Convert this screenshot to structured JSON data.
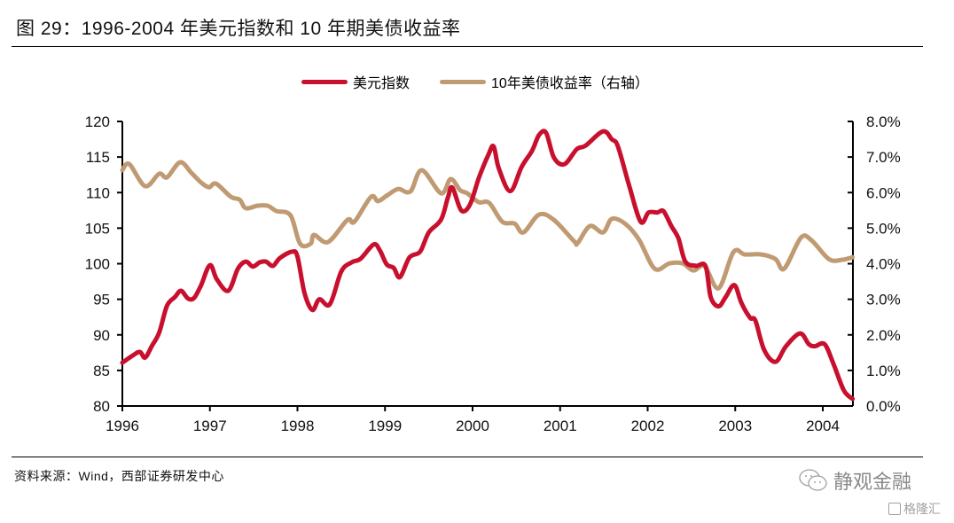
{
  "header": {
    "title": "图 29：1996-2004 年美元指数和 10 年期美债收益率"
  },
  "footer": {
    "source": "资料来源：Wind，西部证券研发中心",
    "watermark": "静观金融",
    "watermark2": "格隆汇"
  },
  "chart_data": {
    "type": "line",
    "title": "1996-2004 年美元指数和 10 年期美债收益率",
    "xlabel": "",
    "ylabel": "",
    "y2label": "",
    "x_ticks": [
      "1996",
      "1997",
      "1998",
      "1999",
      "2000",
      "2001",
      "2002",
      "2003",
      "2004"
    ],
    "x_range": [
      1996,
      2004.34
    ],
    "ylim": [
      80,
      120
    ],
    "y_ticks": [
      "80",
      "85",
      "90",
      "95",
      "100",
      "105",
      "110",
      "115",
      "120"
    ],
    "y2lim": [
      0,
      8
    ],
    "y2_ticks": [
      "0.0%",
      "1.0%",
      "2.0%",
      "3.0%",
      "4.0%",
      "5.0%",
      "6.0%",
      "7.0%",
      "8.0%"
    ],
    "grid": false,
    "legend_position": "top-center",
    "series": [
      {
        "name": "美元指数",
        "axis": "left",
        "color": "#c8102e",
        "points": [
          [
            1996.0,
            86.1
          ],
          [
            1996.12,
            87.1
          ],
          [
            1996.2,
            87.6
          ],
          [
            1996.26,
            86.8
          ],
          [
            1996.34,
            88.5
          ],
          [
            1996.42,
            90.3
          ],
          [
            1996.51,
            94.1
          ],
          [
            1996.6,
            95.3
          ],
          [
            1996.67,
            96.2
          ],
          [
            1996.75,
            95.1
          ],
          [
            1996.82,
            95.2
          ],
          [
            1996.9,
            97.0
          ],
          [
            1997.0,
            99.8
          ],
          [
            1997.08,
            97.8
          ],
          [
            1997.21,
            96.2
          ],
          [
            1997.32,
            99.3
          ],
          [
            1997.41,
            100.3
          ],
          [
            1997.49,
            99.6
          ],
          [
            1997.57,
            100.2
          ],
          [
            1997.64,
            100.3
          ],
          [
            1997.72,
            99.7
          ],
          [
            1997.8,
            100.8
          ],
          [
            1997.94,
            101.7
          ],
          [
            1998.0,
            101.0
          ],
          [
            1998.08,
            95.9
          ],
          [
            1998.17,
            93.5
          ],
          [
            1998.25,
            95.0
          ],
          [
            1998.37,
            94.3
          ],
          [
            1998.5,
            98.9
          ],
          [
            1998.62,
            100.2
          ],
          [
            1998.72,
            100.7
          ],
          [
            1998.87,
            102.7
          ],
          [
            1998.94,
            101.9
          ],
          [
            1999.02,
            99.9
          ],
          [
            1999.1,
            99.4
          ],
          [
            1999.17,
            98.1
          ],
          [
            1999.28,
            100.9
          ],
          [
            1999.4,
            101.7
          ],
          [
            1999.5,
            104.4
          ],
          [
            1999.64,
            106.2
          ],
          [
            1999.72,
            109.4
          ],
          [
            1999.77,
            110.7
          ],
          [
            1999.87,
            107.5
          ],
          [
            1999.97,
            108.3
          ],
          [
            2000.07,
            112.0
          ],
          [
            2000.18,
            115.3
          ],
          [
            2000.24,
            116.5
          ],
          [
            2000.3,
            113.4
          ],
          [
            2000.43,
            110.2
          ],
          [
            2000.56,
            113.6
          ],
          [
            2000.68,
            115.9
          ],
          [
            2000.76,
            118.1
          ],
          [
            2000.84,
            118.4
          ],
          [
            2000.93,
            114.9
          ],
          [
            2001.05,
            114.0
          ],
          [
            2001.19,
            116.1
          ],
          [
            2001.29,
            116.6
          ],
          [
            2001.49,
            118.6
          ],
          [
            2001.59,
            117.5
          ],
          [
            2001.66,
            116.5
          ],
          [
            2001.79,
            110.9
          ],
          [
            2001.92,
            105.9
          ],
          [
            2002.01,
            107.2
          ],
          [
            2002.11,
            107.2
          ],
          [
            2002.18,
            107.4
          ],
          [
            2002.27,
            105.3
          ],
          [
            2002.35,
            103.6
          ],
          [
            2002.43,
            100.3
          ],
          [
            2002.55,
            99.7
          ],
          [
            2002.66,
            99.7
          ],
          [
            2002.72,
            95.3
          ],
          [
            2002.81,
            94.0
          ],
          [
            2002.89,
            95.3
          ],
          [
            2002.99,
            97.0
          ],
          [
            2003.07,
            94.5
          ],
          [
            2003.17,
            92.4
          ],
          [
            2003.23,
            92.0
          ],
          [
            2003.33,
            87.9
          ],
          [
            2003.46,
            86.2
          ],
          [
            2003.58,
            88.4
          ],
          [
            2003.74,
            90.2
          ],
          [
            2003.84,
            88.7
          ],
          [
            2003.91,
            88.4
          ],
          [
            2004.02,
            88.7
          ],
          [
            2004.12,
            86.0
          ],
          [
            2004.24,
            82.2
          ],
          [
            2004.34,
            81.0
          ]
        ]
      },
      {
        "name": "10年美债收益率（右轴）",
        "axis": "right",
        "color": "#c09a72",
        "points": [
          [
            1996.0,
            6.63
          ],
          [
            1996.08,
            6.8
          ],
          [
            1996.26,
            6.18
          ],
          [
            1996.42,
            6.53
          ],
          [
            1996.51,
            6.43
          ],
          [
            1996.66,
            6.85
          ],
          [
            1996.79,
            6.55
          ],
          [
            1996.9,
            6.28
          ],
          [
            1996.99,
            6.15
          ],
          [
            1997.07,
            6.25
          ],
          [
            1997.24,
            5.88
          ],
          [
            1997.34,
            5.8
          ],
          [
            1997.41,
            5.56
          ],
          [
            1997.54,
            5.63
          ],
          [
            1997.66,
            5.63
          ],
          [
            1997.76,
            5.48
          ],
          [
            1997.92,
            5.36
          ],
          [
            1998.03,
            4.56
          ],
          [
            1998.15,
            4.56
          ],
          [
            1998.19,
            4.81
          ],
          [
            1998.35,
            4.61
          ],
          [
            1998.57,
            5.23
          ],
          [
            1998.65,
            5.18
          ],
          [
            1998.84,
            5.88
          ],
          [
            1998.92,
            5.76
          ],
          [
            1999.03,
            5.93
          ],
          [
            1999.15,
            6.1
          ],
          [
            1999.29,
            6.03
          ],
          [
            1999.42,
            6.63
          ],
          [
            1999.64,
            5.98
          ],
          [
            1999.75,
            6.38
          ],
          [
            1999.86,
            6.06
          ],
          [
            1999.94,
            5.98
          ],
          [
            2000.07,
            5.73
          ],
          [
            2000.19,
            5.71
          ],
          [
            2000.34,
            5.18
          ],
          [
            2000.48,
            5.13
          ],
          [
            2000.58,
            4.88
          ],
          [
            2000.76,
            5.38
          ],
          [
            2000.93,
            5.23
          ],
          [
            2001.16,
            4.63
          ],
          [
            2001.2,
            4.58
          ],
          [
            2001.34,
            5.06
          ],
          [
            2001.49,
            4.88
          ],
          [
            2001.59,
            5.26
          ],
          [
            2001.74,
            5.13
          ],
          [
            2001.9,
            4.68
          ],
          [
            2002.08,
            3.86
          ],
          [
            2002.25,
            4.01
          ],
          [
            2002.4,
            4.01
          ],
          [
            2002.52,
            3.81
          ],
          [
            2002.65,
            3.93
          ],
          [
            2002.81,
            3.31
          ],
          [
            2002.98,
            4.33
          ],
          [
            2003.11,
            4.26
          ],
          [
            2003.3,
            4.26
          ],
          [
            2003.46,
            4.13
          ],
          [
            2003.56,
            3.86
          ],
          [
            2003.75,
            4.73
          ],
          [
            2003.87,
            4.66
          ],
          [
            2004.07,
            4.13
          ],
          [
            2004.22,
            4.11
          ],
          [
            2004.34,
            4.18
          ]
        ]
      }
    ]
  }
}
